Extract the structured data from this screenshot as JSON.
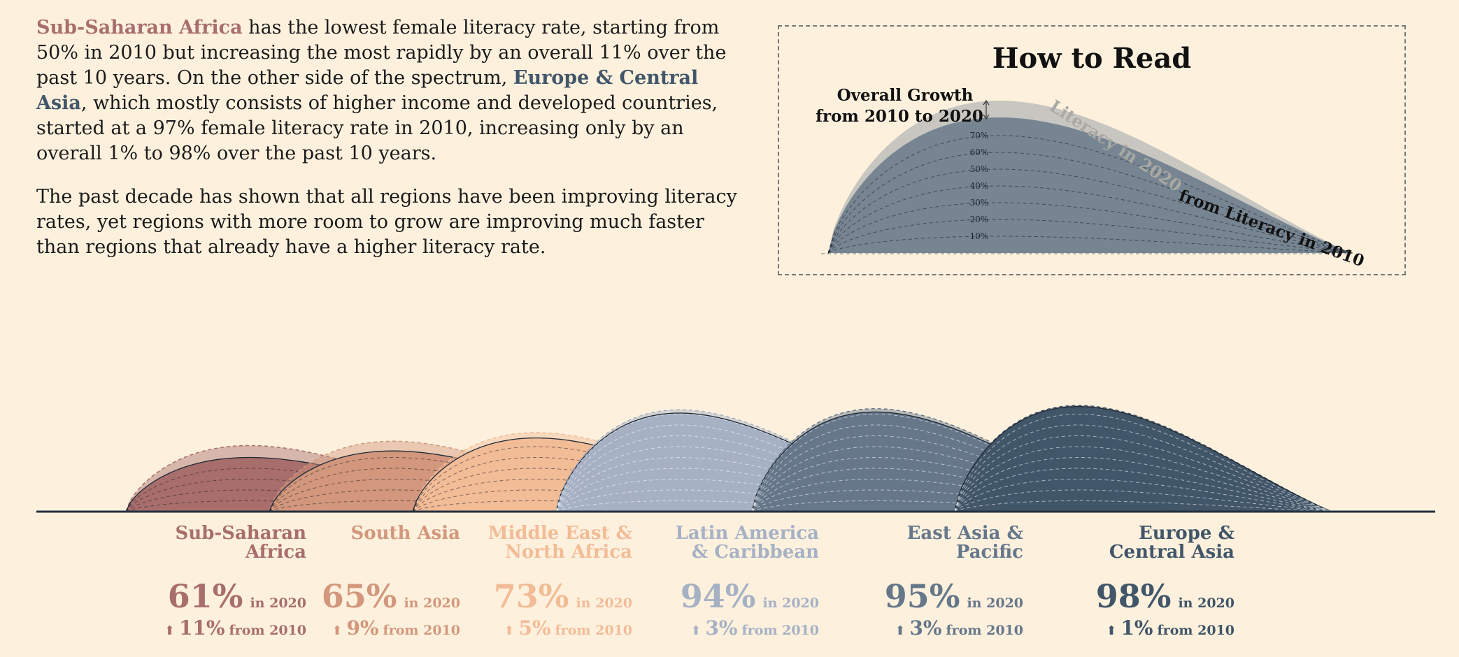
{
  "intro": {
    "p1": {
      "hl1": "Sub-Saharan Africa",
      "t1": " has the lowest female literacy rate, starting from 50% in 2010 but increasing the most rapidly by an overall 11% over the past 10 years. On the other side of the spectrum, ",
      "hl2": "Europe & Central Asia",
      "t2": ", which mostly consists of higher income and developed countries, started at a 97% female literacy rate in 2010, increasing only by an overall 1% to 98% over the past 10 years."
    },
    "p2": "The past decade has shown that all regions have been improving literacy rates, yet regions with more room to grow are improving much faster than regions that already have a higher literacy rate."
  },
  "how_to_read": {
    "title": "How to Read",
    "growth_label_1": "Overall Growth",
    "growth_label_2": "from 2010 to 2020",
    "label_2020": "Literacy in 2020",
    "label_2010": "from Literacy in 2010",
    "ticks": [
      "70%",
      "60%",
      "50%",
      "40%",
      "30%",
      "20%",
      "10%"
    ]
  },
  "labels": {
    "in2020": "in 2020",
    "from2010": "from 2010",
    "arrow": "⬆"
  },
  "colors": {
    "sub_saharan": "#a86e6c",
    "south_asia": "#d2977c",
    "mena": "#f2bc97",
    "latam": "#a6b1c4",
    "east_asia": "#66778a",
    "europe": "#425669",
    "background": "#fdf1de",
    "baseline": "#22313f"
  },
  "chart_data": {
    "type": "area",
    "title": "",
    "x": [
      "2010",
      "2020"
    ],
    "series": [
      {
        "name": "Sub-Saharan Africa",
        "lit2010": 50,
        "lit2020": 61,
        "growth": 11,
        "pct_label": "61%",
        "growth_label": "11%",
        "color": "#a86e6c"
      },
      {
        "name": "South Asia",
        "lit2010": 56,
        "lit2020": 65,
        "growth": 9,
        "pct_label": "65%",
        "growth_label": "9%",
        "color": "#d2977c"
      },
      {
        "name": "Middle East & North Africa",
        "lit2010": 68,
        "lit2020": 73,
        "growth": 5,
        "pct_label": "73%",
        "growth_label": "5%",
        "color": "#f2bc97"
      },
      {
        "name": "Latin America & Caribbean",
        "lit2010": 91,
        "lit2020": 94,
        "growth": 3,
        "pct_label": "94%",
        "growth_label": "3%",
        "color": "#a6b1c4"
      },
      {
        "name": "East Asia & Pacific",
        "lit2010": 92,
        "lit2020": 95,
        "growth": 3,
        "pct_label": "95%",
        "growth_label": "3%",
        "color": "#66778a"
      },
      {
        "name": "Europe & Central Asia",
        "lit2010": 97,
        "lit2020": 98,
        "growth": 1,
        "pct_label": "98%",
        "growth_label": "1%",
        "color": "#425669"
      }
    ],
    "region_lines": [
      [
        "Sub-Saharan",
        "Africa"
      ],
      [
        "South Asia",
        ""
      ],
      [
        "Middle East &",
        "North Africa"
      ],
      [
        "Latin America",
        "& Caribbean"
      ],
      [
        "East Asia &",
        "Pacific"
      ],
      [
        "Europe &",
        "Central Asia"
      ]
    ]
  }
}
